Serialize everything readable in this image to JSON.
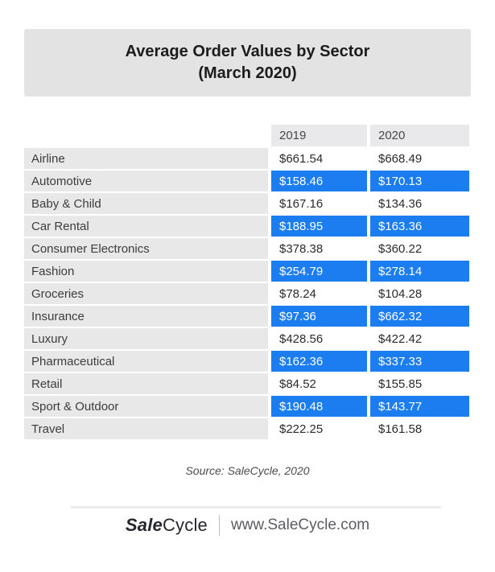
{
  "title": {
    "line1": "Average Order Values by Sector",
    "line2": "(March 2020)"
  },
  "chart_data": {
    "type": "table",
    "title": "Average Order Values by Sector (March 2020)",
    "columns": [
      "2019",
      "2020"
    ],
    "categories": [
      "Airline",
      "Automotive",
      "Baby & Child",
      "Car Rental",
      "Consumer Electronics",
      "Fashion",
      "Groceries",
      "Insurance",
      "Luxury",
      "Pharmaceutical",
      "Retail",
      "Sport & Outdoor",
      "Travel"
    ],
    "series": [
      {
        "name": "2019",
        "values": [
          661.54,
          158.46,
          167.16,
          188.95,
          378.38,
          254.79,
          78.24,
          97.36,
          428.56,
          162.36,
          84.52,
          190.48,
          222.25
        ]
      },
      {
        "name": "2020",
        "values": [
          668.49,
          170.13,
          134.36,
          163.36,
          360.22,
          278.14,
          104.28,
          662.32,
          422.42,
          337.33,
          155.85,
          143.77,
          161.58
        ]
      }
    ],
    "currency": "$",
    "highlighted_rows": [
      "Automotive",
      "Car Rental",
      "Fashion",
      "Insurance",
      "Pharmaceutical",
      "Sport & Outdoor"
    ],
    "highlight_color": "#1c7df0"
  },
  "table": {
    "col_headers": [
      "2019",
      "2020"
    ],
    "rows": [
      {
        "sector": "Airline",
        "v2019": "$661.54",
        "v2020": "$668.49",
        "highlight": false
      },
      {
        "sector": "Automotive",
        "v2019": "$158.46",
        "v2020": "$170.13",
        "highlight": true
      },
      {
        "sector": "Baby & Child",
        "v2019": "$167.16",
        "v2020": "$134.36",
        "highlight": false
      },
      {
        "sector": "Car Rental",
        "v2019": "$188.95",
        "v2020": "$163.36",
        "highlight": true
      },
      {
        "sector": "Consumer Electronics",
        "v2019": "$378.38",
        "v2020": "$360.22",
        "highlight": false
      },
      {
        "sector": "Fashion",
        "v2019": "$254.79",
        "v2020": "$278.14",
        "highlight": true
      },
      {
        "sector": "Groceries",
        "v2019": "$78.24",
        "v2020": "$104.28",
        "highlight": false
      },
      {
        "sector": "Insurance",
        "v2019": "$97.36",
        "v2020": "$662.32",
        "highlight": true
      },
      {
        "sector": "Luxury",
        "v2019": "$428.56",
        "v2020": "$422.42",
        "highlight": false
      },
      {
        "sector": "Pharmaceutical",
        "v2019": "$162.36",
        "v2020": "$337.33",
        "highlight": true
      },
      {
        "sector": "Retail",
        "v2019": "$84.52",
        "v2020": "$155.85",
        "highlight": false
      },
      {
        "sector": "Sport & Outdoor",
        "v2019": "$190.48",
        "v2020": "$143.77",
        "highlight": true
      },
      {
        "sector": "Travel",
        "v2019": "$222.25",
        "v2020": "$161.58",
        "highlight": false
      }
    ]
  },
  "source": "Source: SaleCycle, 2020",
  "footer": {
    "brand_bold": "Sale",
    "brand_rest": "Cycle",
    "url": "www.SaleCycle.com"
  },
  "colors": {
    "highlight": "#1c7df0",
    "title_bg": "#e4e3e3",
    "header_bg": "#e9e9eb",
    "label_bg": "#e9e8e8"
  }
}
